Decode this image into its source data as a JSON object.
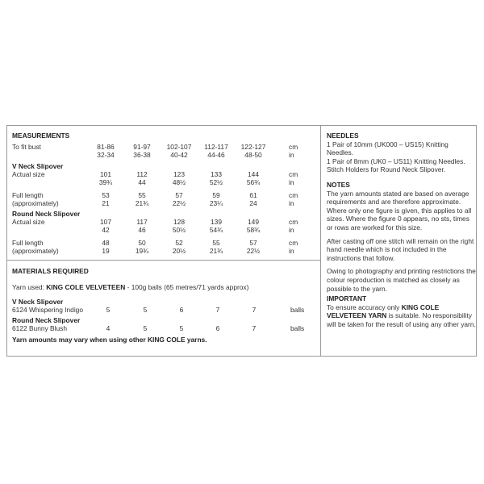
{
  "measurements": {
    "title": "MEASUREMENTS",
    "rows": [
      {
        "label": "To fit bust",
        "vals": [
          "81-86",
          "91-97",
          "102-107",
          "112-117",
          "122-127"
        ],
        "unit": "cm"
      },
      {
        "label": "",
        "vals": [
          "32-34",
          "36-38",
          "40-42",
          "44-46",
          "48-50"
        ],
        "unit": "in"
      },
      {
        "heading": "V Neck Slipover"
      },
      {
        "label": "Actual size",
        "vals": [
          "101",
          "112",
          "123",
          "133",
          "144"
        ],
        "unit": "cm"
      },
      {
        "label": "",
        "vals": [
          "39¾",
          "44",
          "48½",
          "52½",
          "56¾"
        ],
        "unit": "in"
      },
      {
        "label": "Full length",
        "vals": [
          "53",
          "55",
          "57",
          "59",
          "61"
        ],
        "unit": "cm"
      },
      {
        "label": "(approximately)",
        "vals": [
          "21",
          "21¾",
          "22½",
          "23¼",
          "24"
        ],
        "unit": "in"
      },
      {
        "heading": "Round Neck Slipover"
      },
      {
        "label": "Actual size",
        "vals": [
          "107",
          "117",
          "128",
          "139",
          "149"
        ],
        "unit": "cm"
      },
      {
        "label": "",
        "vals": [
          "42",
          "46",
          "50½",
          "54¾",
          "58¾"
        ],
        "unit": "in"
      },
      {
        "label": "Full length",
        "vals": [
          "48",
          "50",
          "52",
          "55",
          "57"
        ],
        "unit": "cm"
      },
      {
        "label": "(approximately)",
        "vals": [
          "19",
          "19¾",
          "20½",
          "21¾",
          "22½"
        ],
        "unit": "in"
      }
    ]
  },
  "materials": {
    "title": "MATERIALS REQUIRED",
    "yarn_prefix": "Yarn used: ",
    "yarn_name": "KING COLE VELVETEEN",
    "yarn_suffix": " - 100g balls (65 metres/71 yards approx)",
    "rows": [
      {
        "heading": "V Neck Slipover"
      },
      {
        "label": "6124 Whispering Indigo",
        "vals": [
          "5",
          "5",
          "6",
          "7",
          "7"
        ],
        "unit": "balls"
      },
      {
        "heading": "Round Neck Slipover"
      },
      {
        "label": "6122 Bunny Blush",
        "vals": [
          "4",
          "5",
          "5",
          "6",
          "7"
        ],
        "unit": "balls"
      }
    ],
    "footnote": "Yarn amounts may vary when using other KING COLE yarns."
  },
  "needles": {
    "title": "NEEDLES",
    "lines": [
      "1 Pair of 10mm (UK000 – US15) Knitting Needles.",
      "1 Pair of 8mm (UK0 – US11) Knitting Needles.",
      "Stitch Holders for Round Neck Slipover."
    ]
  },
  "notes": {
    "title": "NOTES",
    "paras": [
      "The yarn amounts stated are based on average requirements and are therefore approximate. Where only one figure is given, this applies to all sizes. Where the figure 0 appears, no sts, times or rows are worked for this size.",
      "After casting off one stitch will remain on the right hand needle which is not included in the instructions that follow.",
      "Owing to photography and printing restrictions the colour reproduction is matched as closely as possible to the yarn."
    ]
  },
  "important": {
    "title": "IMPORTANT",
    "prefix": "To ensure accuracy only ",
    "bold": "KING COLE VELVETEEN YARN",
    "suffix": " is suitable. No responsibility will be taken for the result of using any other yarn."
  }
}
